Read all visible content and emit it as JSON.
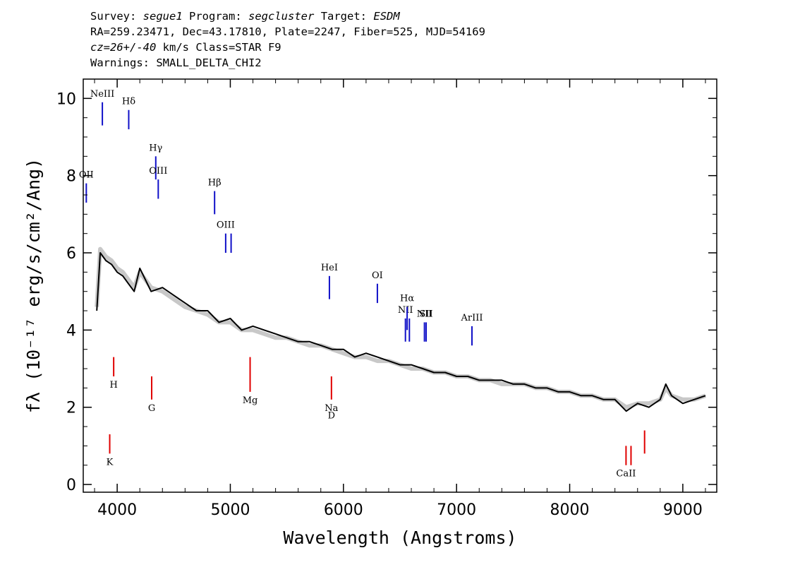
{
  "header": {
    "survey_label": "Survey:",
    "survey": "segue1",
    "program_label": "Program:",
    "program": "segcluster",
    "target_label": "Target:",
    "target": "ESDM",
    "line2": "RA=259.23471, Dec=43.17810, Plate=2247, Fiber=525, MJD=54169",
    "cz_label": "cz=26+/-40",
    "cz_rest": " km/s Class=STAR F9",
    "warnings": "Warnings: SMALL_DELTA_CHI2"
  },
  "chart_data": {
    "type": "line",
    "xlabel": "Wavelength (Angstroms)",
    "ylabel": "fλ (10⁻¹⁷ erg/s/cm²/Ang)",
    "xlim": [
      3700,
      9300
    ],
    "ylim": [
      -0.2,
      10.5
    ],
    "xticks": [
      4000,
      5000,
      6000,
      7000,
      8000,
      9000
    ],
    "yticks": [
      0,
      2,
      4,
      6,
      8,
      10
    ],
    "series": [
      {
        "color": "#000000",
        "x": [
          3820,
          3850,
          3900,
          3950,
          4000,
          4050,
          4100,
          4150,
          4200,
          4300,
          4400,
          4500,
          4600,
          4700,
          4800,
          4900,
          5000,
          5100,
          5200,
          5300,
          5400,
          5500,
          5600,
          5700,
          5800,
          5900,
          6000,
          6100,
          6200,
          6300,
          6400,
          6500,
          6600,
          6700,
          6800,
          6900,
          7000,
          7100,
          7200,
          7300,
          7400,
          7500,
          7600,
          7700,
          7800,
          7900,
          8000,
          8100,
          8200,
          8300,
          8400,
          8500,
          8600,
          8700,
          8800,
          8850,
          8900,
          9000,
          9100,
          9200
        ],
        "y": [
          4.5,
          6.0,
          5.8,
          5.7,
          5.5,
          5.4,
          5.2,
          5.0,
          5.6,
          5.0,
          5.1,
          4.9,
          4.7,
          4.5,
          4.5,
          4.2,
          4.3,
          4.0,
          4.1,
          4.0,
          3.9,
          3.8,
          3.7,
          3.7,
          3.6,
          3.5,
          3.5,
          3.3,
          3.4,
          3.3,
          3.2,
          3.1,
          3.1,
          3.0,
          2.9,
          2.9,
          2.8,
          2.8,
          2.7,
          2.7,
          2.7,
          2.6,
          2.6,
          2.5,
          2.5,
          2.4,
          2.4,
          2.3,
          2.3,
          2.2,
          2.2,
          1.9,
          2.1,
          2.0,
          2.2,
          2.6,
          2.3,
          2.1,
          2.2,
          2.3
        ]
      },
      {
        "color": "#c8c8c8",
        "x": [
          3820,
          3850,
          3900,
          3950,
          4000,
          4050,
          4100,
          4150,
          4200,
          4300,
          4400,
          4500,
          4600,
          4700,
          4800,
          4900,
          5000,
          5100,
          5200,
          5300,
          5400,
          5500,
          5600,
          5700,
          5800,
          5900,
          6000,
          6100,
          6200,
          6300,
          6400,
          6500,
          6600,
          6700,
          6800,
          6900,
          7000,
          7100,
          7200,
          7300,
          7400,
          7500,
          7600,
          7700,
          7800,
          7900,
          8000,
          8100,
          8200,
          8300,
          8400,
          8500,
          8600,
          8700,
          8800,
          8850,
          8900,
          9000,
          9100,
          9200
        ],
        "y": [
          4.6,
          6.1,
          5.9,
          5.8,
          5.6,
          5.5,
          5.3,
          5.1,
          5.5,
          5.1,
          5.0,
          4.8,
          4.6,
          4.5,
          4.4,
          4.2,
          4.2,
          4.0,
          4.0,
          3.9,
          3.8,
          3.8,
          3.7,
          3.6,
          3.6,
          3.5,
          3.4,
          3.3,
          3.3,
          3.2,
          3.2,
          3.1,
          3.0,
          3.0,
          2.9,
          2.9,
          2.8,
          2.8,
          2.7,
          2.7,
          2.6,
          2.6,
          2.6,
          2.5,
          2.5,
          2.4,
          2.4,
          2.3,
          2.3,
          2.2,
          2.2,
          2.0,
          2.1,
          2.1,
          2.2,
          2.5,
          2.3,
          2.2,
          2.2,
          2.3
        ]
      }
    ],
    "emission_lines": [
      {
        "label": "OII",
        "x": 3727,
        "y_top": 7.8,
        "y_bot": 7.3
      },
      {
        "label": "NeIII",
        "x": 3869,
        "y_top": 9.9,
        "y_bot": 9.3
      },
      {
        "label": "Hδ",
        "x": 4102,
        "y_top": 9.7,
        "y_bot": 9.2
      },
      {
        "label": "Hγ",
        "x": 4341,
        "y_top": 8.5,
        "y_bot": 7.9
      },
      {
        "label": "OIII",
        "x": 4363,
        "y_top": 7.9,
        "y_bot": 7.4
      },
      {
        "label": "Hβ",
        "x": 4861,
        "y_top": 7.6,
        "y_bot": 7.0
      },
      {
        "label": "OIII",
        "x": 4959,
        "y_top": 6.5,
        "y_bot": 6.0
      },
      {
        "label": "",
        "x": 5007,
        "y_top": 6.5,
        "y_bot": 6.0
      },
      {
        "label": "HeI",
        "x": 5876,
        "y_top": 5.4,
        "y_bot": 4.8
      },
      {
        "label": "OI",
        "x": 6300,
        "y_top": 5.2,
        "y_bot": 4.7
      },
      {
        "label": "NII",
        "x": 6548,
        "y_top": 4.3,
        "y_bot": 3.7
      },
      {
        "label": "Hα",
        "x": 6563,
        "y_top": 4.6,
        "y_bot": 4.0
      },
      {
        "label": "",
        "x": 6583,
        "y_top": 4.3,
        "y_bot": 3.7
      },
      {
        "label": "NII",
        "x": 6716,
        "y_top": 4.2,
        "y_bot": 3.7
      },
      {
        "label": "SII",
        "x": 6731,
        "y_top": 4.2,
        "y_bot": 3.7
      },
      {
        "label": "ArIII",
        "x": 7136,
        "y_top": 4.1,
        "y_bot": 3.6
      }
    ],
    "absorption_lines": [
      {
        "label": "K",
        "x": 3934,
        "y_top": 1.3,
        "y_bot": 0.8
      },
      {
        "label": "H",
        "x": 3969,
        "y_top": 3.3,
        "y_bot": 2.8
      },
      {
        "label": "G",
        "x": 4305,
        "y_top": 2.8,
        "y_bot": 2.2
      },
      {
        "label": "Mg",
        "x": 5175,
        "y_top": 3.3,
        "y_bot": 2.4
      },
      {
        "label": "Na",
        "x": 5894,
        "y_top": 2.8,
        "y_bot": 2.2
      },
      {
        "label": "D",
        "x": 5894,
        "y_top": 2.0,
        "y_bot": 2.0
      },
      {
        "label": "CaII",
        "x": 8498,
        "y_top": 1.0,
        "y_bot": 0.5
      },
      {
        "label": "",
        "x": 8542,
        "y_top": 1.0,
        "y_bot": 0.5
      },
      {
        "label": "",
        "x": 8662,
        "y_top": 1.4,
        "y_bot": 0.8
      }
    ],
    "line_colors": {
      "emission": "#1010c8",
      "absorption": "#e00000",
      "flux": "#000000",
      "error": "#c8c8c8"
    }
  }
}
